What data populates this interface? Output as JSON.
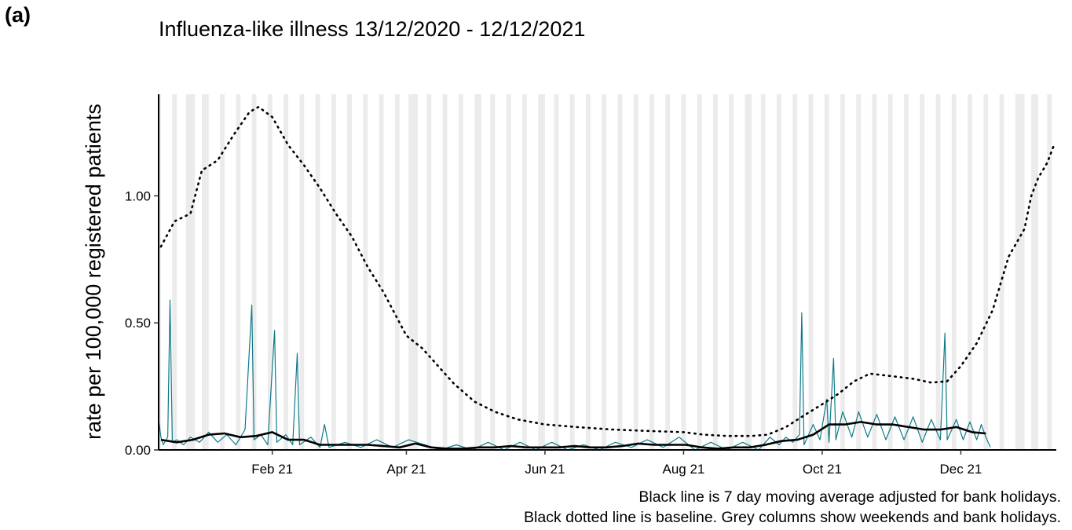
{
  "panel_label": "(a)",
  "chart_data": {
    "type": "line",
    "title": "Influenza-like illness 13/12/2020 - 12/12/2021",
    "xlabel": "",
    "ylabel": "rate per 100,000 registered patients",
    "x_range": [
      "2020-12-13",
      "2022-01-12"
    ],
    "ylim": [
      0,
      1.4
    ],
    "x_tick_labels": [
      "Feb 21",
      "Apr 21",
      "Jun 21",
      "Aug 21",
      "Oct 21",
      "Dec 21"
    ],
    "x_tick_dates": [
      "2021-02-01",
      "2021-04-01",
      "2021-06-01",
      "2021-08-01",
      "2021-10-01",
      "2021-12-01"
    ],
    "y_ticks": [
      0,
      0.5,
      1.0
    ],
    "y_tick_labels": [
      "0.00",
      "0.50",
      "1.00"
    ],
    "grid": false,
    "shading": "weekends and bank holidays",
    "series": [
      {
        "style": "dotted",
        "color": "#000000",
        "points": [
          [
            "2020-12-14",
            0.8
          ],
          [
            "2020-12-20",
            0.9
          ],
          [
            "2020-12-27",
            0.93
          ],
          [
            "2021-01-01",
            1.1
          ],
          [
            "2021-01-08",
            1.14
          ],
          [
            "2021-01-15",
            1.24
          ],
          [
            "2021-01-22",
            1.33
          ],
          [
            "2021-01-26",
            1.35
          ],
          [
            "2021-02-01",
            1.31
          ],
          [
            "2021-02-08",
            1.2
          ],
          [
            "2021-02-15",
            1.12
          ],
          [
            "2021-02-22",
            1.03
          ],
          [
            "2021-03-01",
            0.93
          ],
          [
            "2021-03-08",
            0.84
          ],
          [
            "2021-03-15",
            0.72
          ],
          [
            "2021-03-22",
            0.62
          ],
          [
            "2021-04-01",
            0.45
          ],
          [
            "2021-04-08",
            0.4
          ],
          [
            "2021-04-15",
            0.33
          ],
          [
            "2021-04-22",
            0.26
          ],
          [
            "2021-05-01",
            0.19
          ],
          [
            "2021-05-10",
            0.15
          ],
          [
            "2021-05-20",
            0.12
          ],
          [
            "2021-06-01",
            0.1
          ],
          [
            "2021-06-15",
            0.09
          ],
          [
            "2021-07-01",
            0.08
          ],
          [
            "2021-07-15",
            0.075
          ],
          [
            "2021-08-01",
            0.07
          ],
          [
            "2021-08-10",
            0.06
          ],
          [
            "2021-08-20",
            0.055
          ],
          [
            "2021-08-31",
            0.055
          ],
          [
            "2021-09-07",
            0.06
          ],
          [
            "2021-09-15",
            0.09
          ],
          [
            "2021-09-22",
            0.13
          ],
          [
            "2021-10-01",
            0.18
          ],
          [
            "2021-10-08",
            0.22
          ],
          [
            "2021-10-15",
            0.27
          ],
          [
            "2021-10-22",
            0.3
          ],
          [
            "2021-11-01",
            0.29
          ],
          [
            "2021-11-10",
            0.28
          ],
          [
            "2021-11-18",
            0.265
          ],
          [
            "2021-11-25",
            0.27
          ],
          [
            "2021-12-01",
            0.33
          ],
          [
            "2021-12-08",
            0.42
          ],
          [
            "2021-12-15",
            0.55
          ],
          [
            "2021-12-22",
            0.76
          ],
          [
            "2021-12-29",
            0.87
          ],
          [
            "2022-01-01",
            1.0
          ],
          [
            "2022-01-04",
            1.07
          ],
          [
            "2022-01-08",
            1.13
          ],
          [
            "2022-01-11",
            1.2
          ]
        ]
      },
      {
        "style": "solid-thick",
        "color": "#000000",
        "points": [
          [
            "2020-12-14",
            0.04
          ],
          [
            "2020-12-21",
            0.03
          ],
          [
            "2020-12-28",
            0.04
          ],
          [
            "2021-01-04",
            0.06
          ],
          [
            "2021-01-11",
            0.065
          ],
          [
            "2021-01-18",
            0.05
          ],
          [
            "2021-01-25",
            0.055
          ],
          [
            "2021-02-01",
            0.07
          ],
          [
            "2021-02-08",
            0.04
          ],
          [
            "2021-02-15",
            0.04
          ],
          [
            "2021-02-22",
            0.02
          ],
          [
            "2021-03-01",
            0.02
          ],
          [
            "2021-03-08",
            0.02
          ],
          [
            "2021-03-15",
            0.02
          ],
          [
            "2021-03-22",
            0.015
          ],
          [
            "2021-03-29",
            0.01
          ],
          [
            "2021-04-05",
            0.025
          ],
          [
            "2021-04-12",
            0.01
          ],
          [
            "2021-04-19",
            0.005
          ],
          [
            "2021-04-26",
            0.005
          ],
          [
            "2021-05-03",
            0.01
          ],
          [
            "2021-05-10",
            0.01
          ],
          [
            "2021-05-17",
            0.015
          ],
          [
            "2021-05-24",
            0.01
          ],
          [
            "2021-05-31",
            0.01
          ],
          [
            "2021-06-07",
            0.01
          ],
          [
            "2021-06-14",
            0.015
          ],
          [
            "2021-06-21",
            0.01
          ],
          [
            "2021-06-28",
            0.01
          ],
          [
            "2021-07-05",
            0.015
          ],
          [
            "2021-07-12",
            0.025
          ],
          [
            "2021-07-19",
            0.02
          ],
          [
            "2021-07-26",
            0.02
          ],
          [
            "2021-08-02",
            0.02
          ],
          [
            "2021-08-09",
            0.01
          ],
          [
            "2021-08-16",
            0.005
          ],
          [
            "2021-08-23",
            0.01
          ],
          [
            "2021-08-30",
            0.01
          ],
          [
            "2021-09-06",
            0.02
          ],
          [
            "2021-09-13",
            0.035
          ],
          [
            "2021-09-20",
            0.04
          ],
          [
            "2021-09-27",
            0.06
          ],
          [
            "2021-10-04",
            0.1
          ],
          [
            "2021-10-11",
            0.1
          ],
          [
            "2021-10-18",
            0.11
          ],
          [
            "2021-10-25",
            0.1
          ],
          [
            "2021-11-01",
            0.1
          ],
          [
            "2021-11-08",
            0.09
          ],
          [
            "2021-11-15",
            0.08
          ],
          [
            "2021-11-22",
            0.08
          ],
          [
            "2021-11-29",
            0.09
          ],
          [
            "2021-12-06",
            0.07
          ],
          [
            "2021-12-12",
            0.065
          ]
        ]
      },
      {
        "style": "solid-thin",
        "color": "#0f7a8a",
        "points": [
          [
            "2020-12-13",
            0.12
          ],
          [
            "2020-12-14",
            0.05
          ],
          [
            "2020-12-15",
            0.02
          ],
          [
            "2020-12-17",
            0.05
          ],
          [
            "2020-12-18",
            0.59
          ],
          [
            "2020-12-19",
            0.03
          ],
          [
            "2020-12-21",
            0.04
          ],
          [
            "2020-12-24",
            0.02
          ],
          [
            "2020-12-27",
            0.05
          ],
          [
            "2020-12-31",
            0.03
          ],
          [
            "2021-01-04",
            0.07
          ],
          [
            "2021-01-08",
            0.03
          ],
          [
            "2021-01-12",
            0.06
          ],
          [
            "2021-01-16",
            0.02
          ],
          [
            "2021-01-20",
            0.08
          ],
          [
            "2021-01-23",
            0.57
          ],
          [
            "2021-01-24",
            0.04
          ],
          [
            "2021-01-27",
            0.06
          ],
          [
            "2021-01-30",
            0.02
          ],
          [
            "2021-02-02",
            0.47
          ],
          [
            "2021-02-03",
            0.03
          ],
          [
            "2021-02-07",
            0.06
          ],
          [
            "2021-02-10",
            0.02
          ],
          [
            "2021-02-12",
            0.38
          ],
          [
            "2021-02-13",
            0.02
          ],
          [
            "2021-02-18",
            0.05
          ],
          [
            "2021-02-22",
            0.01
          ],
          [
            "2021-02-24",
            0.1
          ],
          [
            "2021-02-26",
            0.01
          ],
          [
            "2021-03-05",
            0.03
          ],
          [
            "2021-03-12",
            0.01
          ],
          [
            "2021-03-19",
            0.04
          ],
          [
            "2021-03-26",
            0.01
          ],
          [
            "2021-04-02",
            0.04
          ],
          [
            "2021-04-09",
            0.02
          ],
          [
            "2021-04-16",
            0.0
          ],
          [
            "2021-04-23",
            0.02
          ],
          [
            "2021-04-30",
            0.0
          ],
          [
            "2021-05-07",
            0.03
          ],
          [
            "2021-05-14",
            0.0
          ],
          [
            "2021-05-21",
            0.03
          ],
          [
            "2021-05-28",
            0.0
          ],
          [
            "2021-06-04",
            0.03
          ],
          [
            "2021-06-11",
            0.0
          ],
          [
            "2021-06-18",
            0.02
          ],
          [
            "2021-06-25",
            0.0
          ],
          [
            "2021-07-02",
            0.03
          ],
          [
            "2021-07-09",
            0.01
          ],
          [
            "2021-07-16",
            0.04
          ],
          [
            "2021-07-23",
            0.01
          ],
          [
            "2021-07-30",
            0.05
          ],
          [
            "2021-08-06",
            0.0
          ],
          [
            "2021-08-13",
            0.03
          ],
          [
            "2021-08-20",
            0.0
          ],
          [
            "2021-08-27",
            0.03
          ],
          [
            "2021-09-03",
            0.0
          ],
          [
            "2021-09-08",
            0.05
          ],
          [
            "2021-09-12",
            0.02
          ],
          [
            "2021-09-15",
            0.05
          ],
          [
            "2021-09-18",
            0.03
          ],
          [
            "2021-09-21",
            0.06
          ],
          [
            "2021-09-22",
            0.54
          ],
          [
            "2021-09-23",
            0.02
          ],
          [
            "2021-09-27",
            0.1
          ],
          [
            "2021-09-30",
            0.04
          ],
          [
            "2021-10-03",
            0.2
          ],
          [
            "2021-10-04",
            0.03
          ],
          [
            "2021-10-06",
            0.36
          ],
          [
            "2021-10-07",
            0.04
          ],
          [
            "2021-10-10",
            0.15
          ],
          [
            "2021-10-14",
            0.05
          ],
          [
            "2021-10-17",
            0.15
          ],
          [
            "2021-10-21",
            0.05
          ],
          [
            "2021-10-25",
            0.14
          ],
          [
            "2021-10-29",
            0.04
          ],
          [
            "2021-11-02",
            0.13
          ],
          [
            "2021-11-06",
            0.04
          ],
          [
            "2021-11-10",
            0.13
          ],
          [
            "2021-11-14",
            0.03
          ],
          [
            "2021-11-18",
            0.12
          ],
          [
            "2021-11-22",
            0.04
          ],
          [
            "2021-11-24",
            0.46
          ],
          [
            "2021-11-25",
            0.04
          ],
          [
            "2021-11-29",
            0.12
          ],
          [
            "2021-12-02",
            0.04
          ],
          [
            "2021-12-05",
            0.11
          ],
          [
            "2021-12-08",
            0.04
          ],
          [
            "2021-12-10",
            0.1
          ],
          [
            "2021-12-12",
            0.05
          ],
          [
            "2021-12-14",
            0.01
          ]
        ]
      }
    ],
    "annotations": [
      "Black line is 7 day moving average adjusted for bank holidays.",
      "Black dotted line is baseline. Grey columns show weekends and bank holidays."
    ]
  }
}
